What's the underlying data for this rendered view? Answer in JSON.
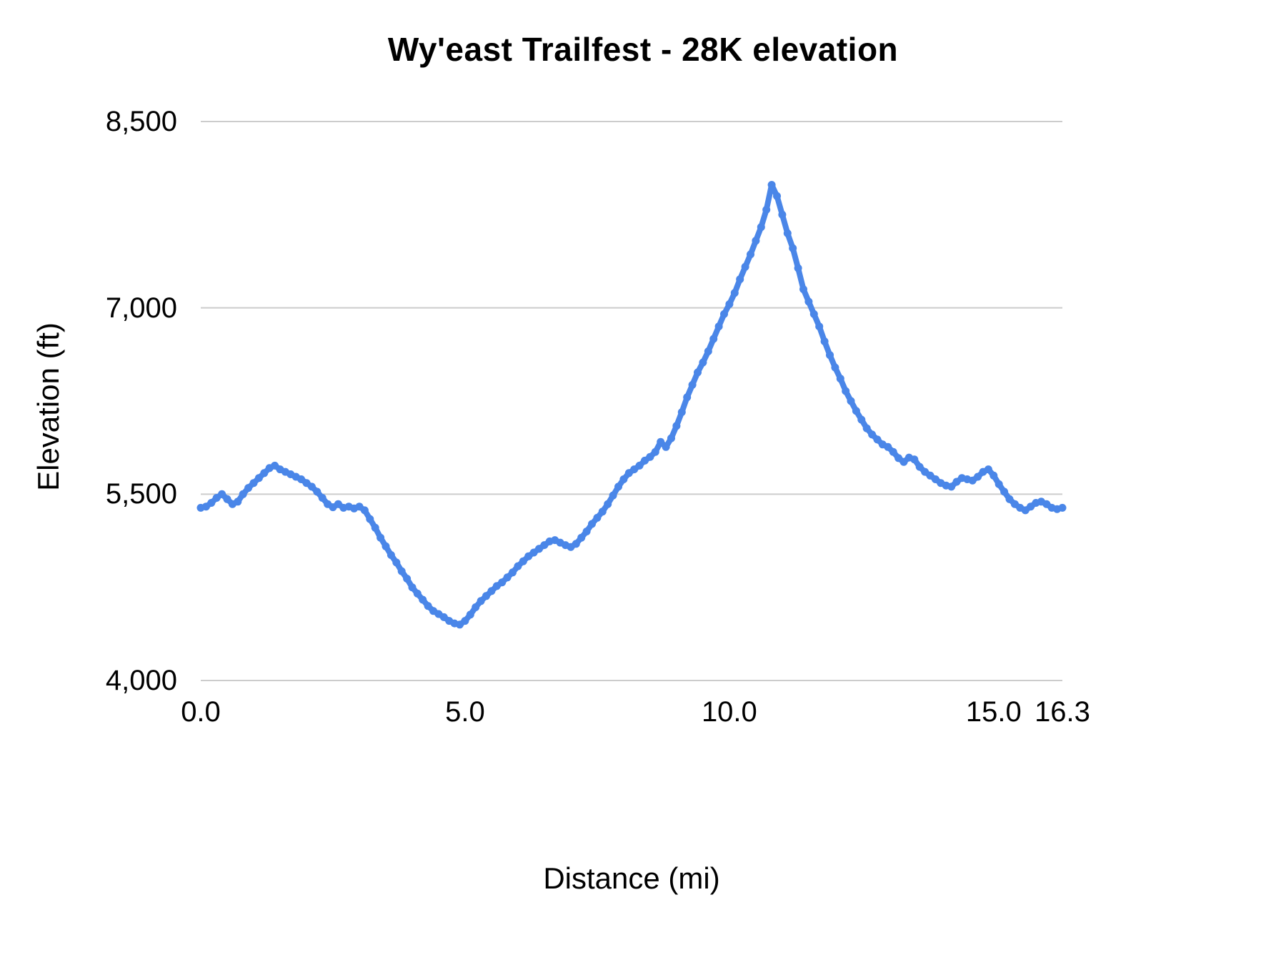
{
  "chart_data": {
    "type": "line",
    "title": "Wy'east Trailfest - 28K elevation",
    "xlabel": "Distance (mi)",
    "ylabel": "Elevation (ft)",
    "xlim": [
      0,
      16.3
    ],
    "ylim": [
      4000,
      8500
    ],
    "grid": true,
    "legend_position": "none",
    "line_color": "#4a86e8",
    "grid_color": "#cccccc",
    "x_ticks": [
      {
        "v": 0.0,
        "label": "0.0"
      },
      {
        "v": 5.0,
        "label": "5.0"
      },
      {
        "v": 10.0,
        "label": "10.0"
      },
      {
        "v": 15.0,
        "label": "15.0"
      },
      {
        "v": 16.3,
        "label": "16.3"
      }
    ],
    "y_ticks": [
      {
        "v": 4000,
        "label": "4,000"
      },
      {
        "v": 5500,
        "label": "5,500"
      },
      {
        "v": 7000,
        "label": "7,000"
      },
      {
        "v": 8500,
        "label": "8,500"
      }
    ],
    "series": [
      {
        "name": "Elevation",
        "points": [
          [
            0.0,
            5390
          ],
          [
            0.1,
            5400
          ],
          [
            0.2,
            5430
          ],
          [
            0.3,
            5470
          ],
          [
            0.4,
            5500
          ],
          [
            0.5,
            5460
          ],
          [
            0.6,
            5420
          ],
          [
            0.7,
            5440
          ],
          [
            0.8,
            5500
          ],
          [
            0.9,
            5550
          ],
          [
            1.0,
            5590
          ],
          [
            1.1,
            5630
          ],
          [
            1.2,
            5670
          ],
          [
            1.3,
            5710
          ],
          [
            1.4,
            5730
          ],
          [
            1.5,
            5700
          ],
          [
            1.6,
            5680
          ],
          [
            1.7,
            5660
          ],
          [
            1.8,
            5640
          ],
          [
            1.9,
            5620
          ],
          [
            2.0,
            5590
          ],
          [
            2.1,
            5560
          ],
          [
            2.2,
            5520
          ],
          [
            2.3,
            5470
          ],
          [
            2.4,
            5420
          ],
          [
            2.5,
            5395
          ],
          [
            2.6,
            5420
          ],
          [
            2.7,
            5390
          ],
          [
            2.8,
            5400
          ],
          [
            2.9,
            5385
          ],
          [
            3.0,
            5400
          ],
          [
            3.1,
            5370
          ],
          [
            3.2,
            5300
          ],
          [
            3.3,
            5230
          ],
          [
            3.4,
            5150
          ],
          [
            3.5,
            5080
          ],
          [
            3.6,
            5010
          ],
          [
            3.7,
            4950
          ],
          [
            3.8,
            4880
          ],
          [
            3.9,
            4820
          ],
          [
            4.0,
            4750
          ],
          [
            4.1,
            4700
          ],
          [
            4.2,
            4650
          ],
          [
            4.3,
            4600
          ],
          [
            4.4,
            4560
          ],
          [
            4.5,
            4535
          ],
          [
            4.6,
            4510
          ],
          [
            4.7,
            4480
          ],
          [
            4.8,
            4460
          ],
          [
            4.9,
            4450
          ],
          [
            5.0,
            4480
          ],
          [
            5.1,
            4530
          ],
          [
            5.2,
            4590
          ],
          [
            5.3,
            4640
          ],
          [
            5.4,
            4680
          ],
          [
            5.5,
            4720
          ],
          [
            5.6,
            4760
          ],
          [
            5.7,
            4790
          ],
          [
            5.8,
            4830
          ],
          [
            5.9,
            4870
          ],
          [
            6.0,
            4920
          ],
          [
            6.1,
            4960
          ],
          [
            6.2,
            5000
          ],
          [
            6.3,
            5030
          ],
          [
            6.4,
            5060
          ],
          [
            6.5,
            5090
          ],
          [
            6.6,
            5120
          ],
          [
            6.7,
            5130
          ],
          [
            6.8,
            5110
          ],
          [
            6.9,
            5090
          ],
          [
            7.0,
            5075
          ],
          [
            7.1,
            5100
          ],
          [
            7.2,
            5150
          ],
          [
            7.3,
            5200
          ],
          [
            7.4,
            5260
          ],
          [
            7.5,
            5310
          ],
          [
            7.6,
            5360
          ],
          [
            7.7,
            5420
          ],
          [
            7.8,
            5490
          ],
          [
            7.9,
            5560
          ],
          [
            8.0,
            5620
          ],
          [
            8.1,
            5670
          ],
          [
            8.2,
            5700
          ],
          [
            8.3,
            5730
          ],
          [
            8.4,
            5770
          ],
          [
            8.5,
            5800
          ],
          [
            8.6,
            5840
          ],
          [
            8.7,
            5920
          ],
          [
            8.8,
            5880
          ],
          [
            8.9,
            5950
          ],
          [
            9.0,
            6050
          ],
          [
            9.1,
            6160
          ],
          [
            9.2,
            6280
          ],
          [
            9.3,
            6380
          ],
          [
            9.4,
            6480
          ],
          [
            9.5,
            6560
          ],
          [
            9.6,
            6650
          ],
          [
            9.7,
            6750
          ],
          [
            9.8,
            6850
          ],
          [
            9.9,
            6950
          ],
          [
            10.0,
            7030
          ],
          [
            10.1,
            7120
          ],
          [
            10.2,
            7230
          ],
          [
            10.3,
            7330
          ],
          [
            10.4,
            7430
          ],
          [
            10.5,
            7540
          ],
          [
            10.6,
            7650
          ],
          [
            10.7,
            7790
          ],
          [
            10.8,
            7990
          ],
          [
            10.9,
            7900
          ],
          [
            11.0,
            7750
          ],
          [
            11.1,
            7600
          ],
          [
            11.2,
            7480
          ],
          [
            11.3,
            7320
          ],
          [
            11.4,
            7150
          ],
          [
            11.5,
            7050
          ],
          [
            11.6,
            6950
          ],
          [
            11.7,
            6850
          ],
          [
            11.8,
            6730
          ],
          [
            11.9,
            6620
          ],
          [
            12.0,
            6520
          ],
          [
            12.1,
            6430
          ],
          [
            12.2,
            6330
          ],
          [
            12.3,
            6250
          ],
          [
            12.4,
            6170
          ],
          [
            12.5,
            6100
          ],
          [
            12.6,
            6030
          ],
          [
            12.7,
            5980
          ],
          [
            12.8,
            5940
          ],
          [
            12.9,
            5900
          ],
          [
            13.0,
            5880
          ],
          [
            13.1,
            5840
          ],
          [
            13.2,
            5790
          ],
          [
            13.3,
            5760
          ],
          [
            13.4,
            5795
          ],
          [
            13.5,
            5780
          ],
          [
            13.6,
            5720
          ],
          [
            13.7,
            5680
          ],
          [
            13.8,
            5650
          ],
          [
            13.9,
            5620
          ],
          [
            14.0,
            5590
          ],
          [
            14.1,
            5570
          ],
          [
            14.2,
            5560
          ],
          [
            14.3,
            5600
          ],
          [
            14.4,
            5630
          ],
          [
            14.5,
            5620
          ],
          [
            14.6,
            5610
          ],
          [
            14.7,
            5640
          ],
          [
            14.8,
            5680
          ],
          [
            14.9,
            5700
          ],
          [
            15.0,
            5650
          ],
          [
            15.1,
            5580
          ],
          [
            15.2,
            5520
          ],
          [
            15.3,
            5460
          ],
          [
            15.4,
            5420
          ],
          [
            15.5,
            5390
          ],
          [
            15.6,
            5370
          ],
          [
            15.7,
            5400
          ],
          [
            15.8,
            5430
          ],
          [
            15.9,
            5440
          ],
          [
            16.0,
            5420
          ],
          [
            16.1,
            5390
          ],
          [
            16.2,
            5380
          ],
          [
            16.3,
            5390
          ]
        ]
      }
    ]
  }
}
